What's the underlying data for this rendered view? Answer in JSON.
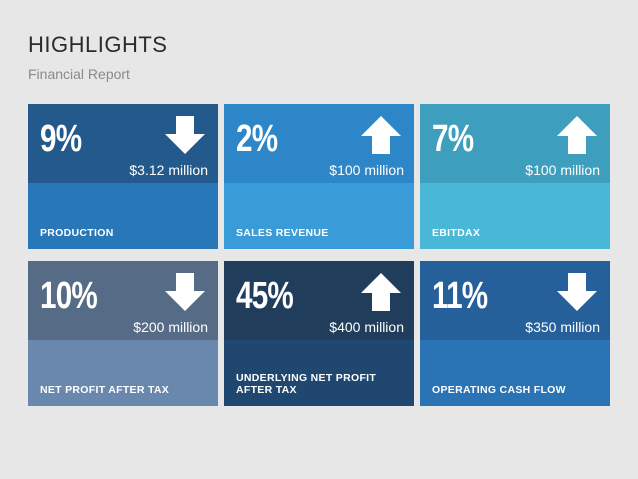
{
  "header": {
    "title": "HIGHLIGHTS",
    "subtitle": "Financial Report"
  },
  "cards": [
    {
      "percent": "9%",
      "amount": "$3.12 million",
      "label": "PRODUCTION",
      "direction": "down",
      "top_color": "#24598c",
      "bottom_color": "#2877b8"
    },
    {
      "percent": "2%",
      "amount": "$100 million",
      "label": "SALES REVENUE",
      "direction": "up",
      "top_color": "#2c86c7",
      "bottom_color": "#3a9bd9"
    },
    {
      "percent": "7%",
      "amount": "$100 million",
      "label": "EBITDAX",
      "direction": "up",
      "top_color": "#3d9fbd",
      "bottom_color": "#48b8d6"
    },
    {
      "percent": "10%",
      "amount": "$200 million",
      "label": "NET PROFIT AFTER TAX",
      "direction": "down",
      "top_color": "#566b85",
      "bottom_color": "#6a88ad"
    },
    {
      "percent": "45%",
      "amount": "$400 million",
      "label": "UNDERLYING NET PROFIT AFTER TAX",
      "direction": "up",
      "top_color": "#203d5c",
      "bottom_color": "#1f4770"
    },
    {
      "percent": "11%",
      "amount": "$350 million",
      "label": "OPERATING CASH FLOW",
      "direction": "down",
      "top_color": "#26609a",
      "bottom_color": "#2a73b4"
    }
  ],
  "icons": {
    "up": "arrow-up-icon",
    "down": "arrow-down-icon"
  }
}
